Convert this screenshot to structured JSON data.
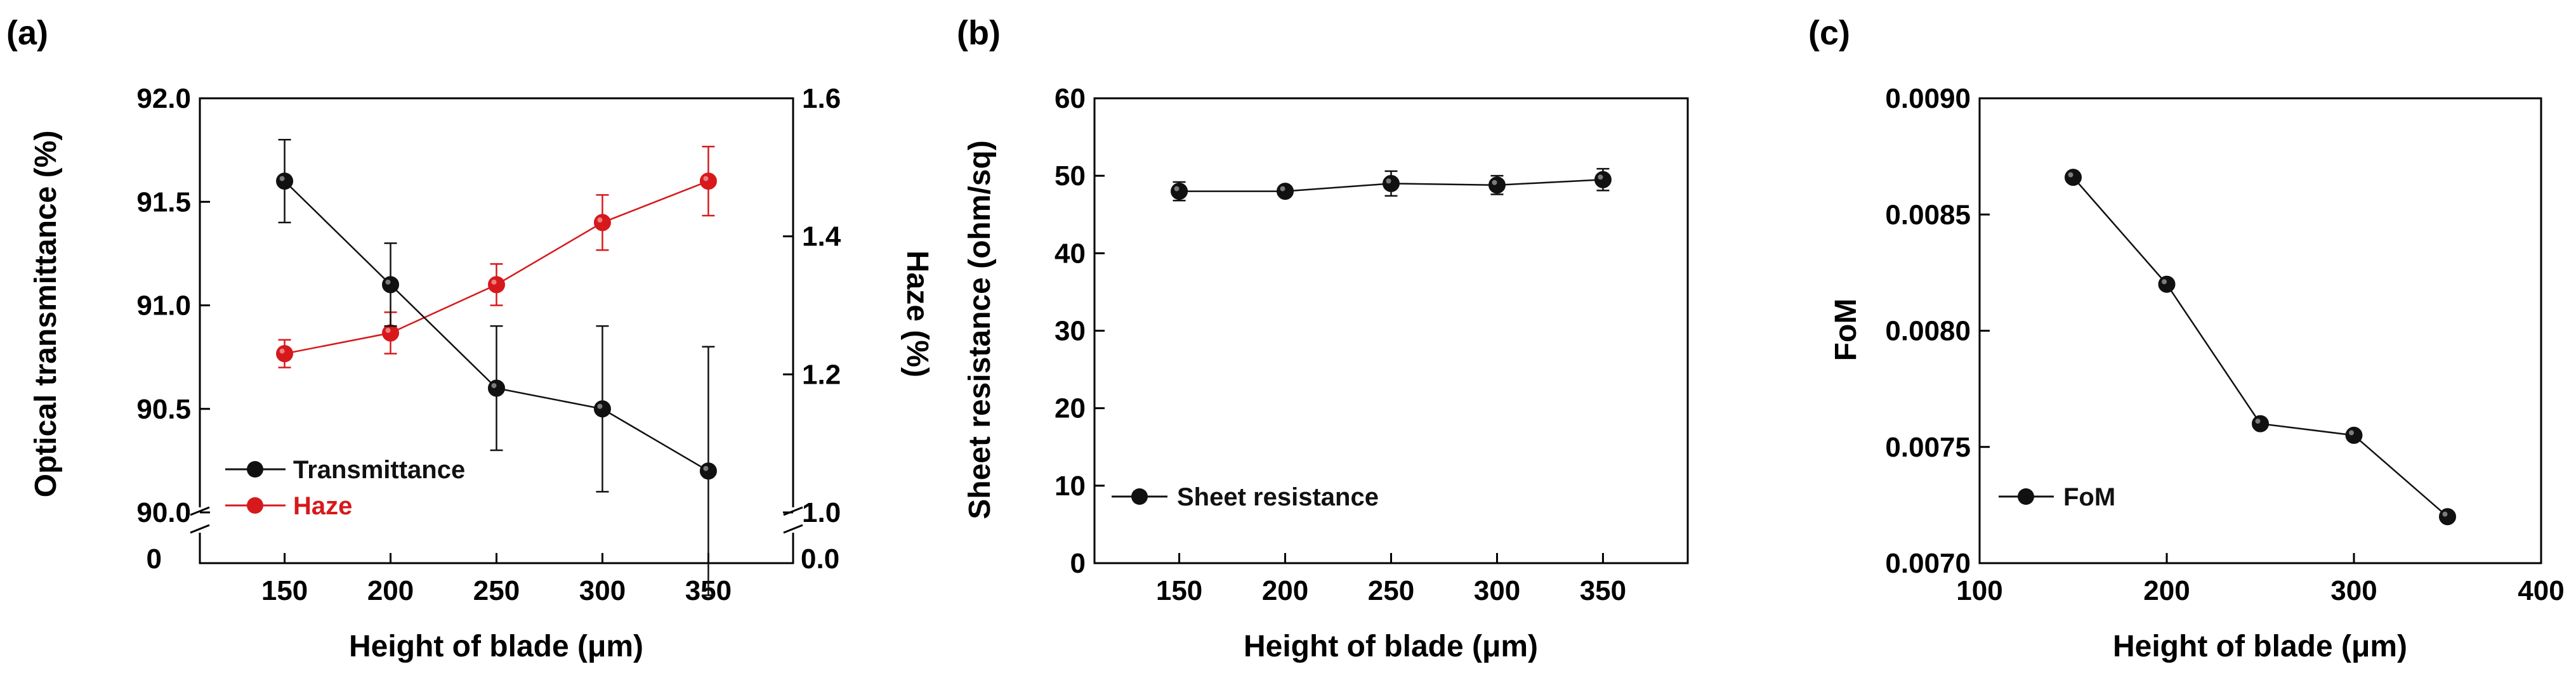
{
  "colors": {
    "black": "#111111",
    "red": "#d7191c",
    "axis": "#000000"
  },
  "chart_data": [
    {
      "panel_label": "(a)",
      "type": "line",
      "x": [
        150,
        200,
        250,
        300,
        350
      ],
      "xlim": [
        110,
        390
      ],
      "xticks": [
        "150",
        "200",
        "250",
        "300",
        "350"
      ],
      "xlabel": "Height of blade (μm)",
      "ylabel_left": "Optical transmittance (%)",
      "ylabel_right": "Haze (%)",
      "ylim_left": [
        90.0,
        92.0
      ],
      "ylim_right": [
        1.0,
        1.6
      ],
      "yticks_left": [
        "90.0",
        "90.5",
        "91.0",
        "91.5",
        "92.0"
      ],
      "yticks_right": [
        "1.0",
        "1.2",
        "1.4",
        "1.6"
      ],
      "axis_break_left_label": "0",
      "axis_break_right_label": "0.0",
      "series": [
        {
          "name": "Transmittance",
          "axis": "left",
          "color": "#111111",
          "values": [
            91.6,
            91.1,
            90.6,
            90.5,
            90.2
          ],
          "errors": [
            0.2,
            0.2,
            0.3,
            0.4,
            0.6
          ]
        },
        {
          "name": "Haze",
          "axis": "right",
          "color": "#d7191c",
          "values": [
            1.23,
            1.26,
            1.33,
            1.42,
            1.48
          ],
          "errors": [
            0.02,
            0.03,
            0.03,
            0.04,
            0.05
          ]
        }
      ],
      "legend": "bottom-left"
    },
    {
      "panel_label": "(b)",
      "type": "line",
      "x": [
        150,
        200,
        250,
        300,
        350
      ],
      "xlim": [
        110,
        390
      ],
      "xticks": [
        "150",
        "200",
        "250",
        "300",
        "350"
      ],
      "xlabel": "Height of blade (μm)",
      "ylabel": "Sheet resistance (ohm/sq)",
      "ylim": [
        0,
        60
      ],
      "yticks": [
        "0",
        "10",
        "20",
        "30",
        "40",
        "50",
        "60"
      ],
      "series": [
        {
          "name": "Sheet resistance",
          "color": "#111111",
          "values": [
            48.0,
            48.0,
            49.0,
            48.8,
            49.5
          ],
          "errors": [
            1.2,
            0.6,
            1.6,
            1.2,
            1.4
          ]
        }
      ],
      "legend": "bottom-left"
    },
    {
      "panel_label": "(c)",
      "type": "line",
      "x": [
        150,
        200,
        250,
        300,
        350
      ],
      "xlim": [
        100,
        400
      ],
      "xticks": [
        "100",
        "200",
        "300",
        "400"
      ],
      "xlabel": "Height of blade (μm)",
      "ylabel": "FoM",
      "ylim": [
        0.007,
        0.009
      ],
      "yticks": [
        "0.0070",
        "0.0075",
        "0.0080",
        "0.0085",
        "0.0090"
      ],
      "series": [
        {
          "name": "FoM",
          "color": "#111111",
          "values": [
            0.00866,
            0.0082,
            0.0076,
            0.00755,
            0.0072
          ]
        }
      ],
      "legend": "bottom-left"
    }
  ]
}
